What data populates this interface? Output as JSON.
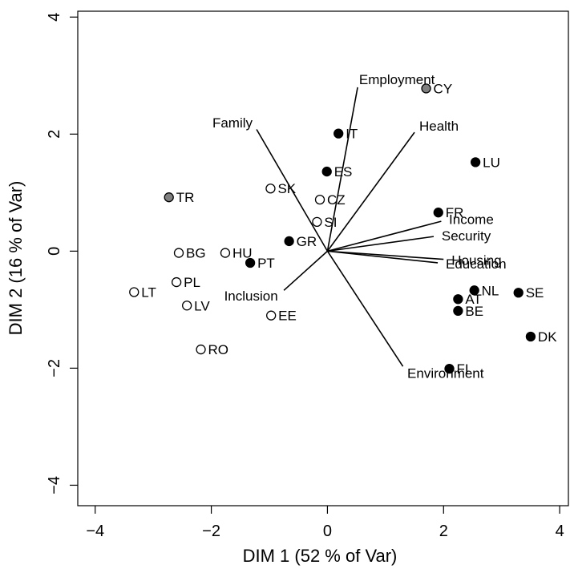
{
  "chart_data": {
    "type": "scatter",
    "title": "",
    "xlabel": "DIM 1 (52 % of Var)",
    "ylabel": "DIM 2 (16 % of Var)",
    "xlim": [
      -4.3,
      4.15
    ],
    "ylim": [
      -4.35,
      4.1
    ],
    "xticks": [
      -4,
      -2,
      0,
      2,
      4
    ],
    "yticks": [
      -4,
      -2,
      0,
      2,
      4
    ],
    "xtick_labels": [
      "−4",
      "−2",
      "0",
      "2",
      "4"
    ],
    "ytick_labels": [
      "−4",
      "−2",
      "0",
      "2",
      "4"
    ],
    "grid": false,
    "colors": {
      "filled": "#000000",
      "gray": "#808080",
      "open": "#ffffff",
      "line": "#000000"
    },
    "points": [
      {
        "label": "CY",
        "x": 1.7,
        "y": 2.78,
        "style": "gray"
      },
      {
        "label": "TR",
        "x": -2.73,
        "y": 0.92,
        "style": "gray"
      },
      {
        "label": "IT",
        "x": 0.19,
        "y": 2.01,
        "style": "filled"
      },
      {
        "label": "LU",
        "x": 2.55,
        "y": 1.52,
        "style": "filled"
      },
      {
        "label": "ES",
        "x": -0.01,
        "y": 1.36,
        "style": "filled"
      },
      {
        "label": "FR",
        "x": 1.91,
        "y": 0.66,
        "style": "filled"
      },
      {
        "label": "GR",
        "x": -0.66,
        "y": 0.17,
        "style": "filled"
      },
      {
        "label": "PT",
        "x": -1.33,
        "y": -0.2,
        "style": "filled"
      },
      {
        "label": "NL",
        "x": 2.53,
        "y": -0.67,
        "style": "filled"
      },
      {
        "label": "SE",
        "x": 3.29,
        "y": -0.71,
        "style": "filled"
      },
      {
        "label": "AT",
        "x": 2.25,
        "y": -0.82,
        "style": "filled"
      },
      {
        "label": "BE",
        "x": 2.25,
        "y": -1.02,
        "style": "filled"
      },
      {
        "label": "DK",
        "x": 3.5,
        "y": -1.46,
        "style": "filled"
      },
      {
        "label": "FI",
        "x": 2.1,
        "y": -2.01,
        "style": "filled"
      },
      {
        "label": "SK",
        "x": -0.98,
        "y": 1.07,
        "style": "open"
      },
      {
        "label": "CZ",
        "x": -0.13,
        "y": 0.88,
        "style": "open"
      },
      {
        "label": "SI",
        "x": -0.18,
        "y": 0.5,
        "style": "open"
      },
      {
        "label": "BG",
        "x": -2.56,
        "y": -0.03,
        "style": "open"
      },
      {
        "label": "HU",
        "x": -1.76,
        "y": -0.03,
        "style": "open"
      },
      {
        "label": "PL",
        "x": -2.6,
        "y": -0.53,
        "style": "open"
      },
      {
        "label": "LT",
        "x": -3.33,
        "y": -0.7,
        "style": "open"
      },
      {
        "label": "LV",
        "x": -2.42,
        "y": -0.93,
        "style": "open"
      },
      {
        "label": "EE",
        "x": -0.97,
        "y": -1.1,
        "style": "open"
      },
      {
        "label": "RO",
        "x": -2.18,
        "y": -1.68,
        "style": "open"
      }
    ],
    "loadings": [
      {
        "label": "Employment",
        "x": 0.52,
        "y": 2.8
      },
      {
        "label": "Family",
        "x": -1.22,
        "y": 2.08
      },
      {
        "label": "Health",
        "x": 1.5,
        "y": 2.03
      },
      {
        "label": "Income",
        "x": 1.96,
        "y": 0.51
      },
      {
        "label": "Security",
        "x": 1.83,
        "y": 0.25
      },
      {
        "label": "Housing",
        "x": 2.0,
        "y": -0.14
      },
      {
        "label": "Education",
        "x": 1.9,
        "y": -0.2
      },
      {
        "label": "Inclusion",
        "x": -0.75,
        "y": -0.67
      },
      {
        "label": "Environment",
        "x": 1.3,
        "y": -1.97
      }
    ]
  }
}
